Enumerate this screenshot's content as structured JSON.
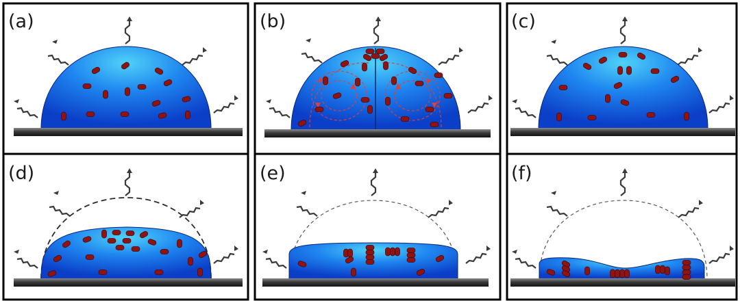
{
  "panels": [
    {
      "label": "(a)",
      "stage": "cap"
    },
    {
      "label": "(b)",
      "stage": "flow"
    },
    {
      "label": "(c)",
      "stage": "cap"
    },
    {
      "label": "(d)",
      "stage": "flat"
    },
    {
      "label": "(e)",
      "stage": "stacking"
    },
    {
      "label": "(f)",
      "stage": "dried"
    }
  ],
  "colors": {
    "droplet_center": "#4fd2f8",
    "droplet_mid": "#1f86f0",
    "droplet_edge": "#0b3fc8",
    "particle": "#8e1414",
    "particle_stroke": "#4a0808",
    "flow_lines": "#d94040",
    "substrate_light": "#8a8a8a",
    "substrate_dark": "#141414",
    "evaporation_arrows": "#3a3a3a",
    "panel_border": "#000000"
  }
}
